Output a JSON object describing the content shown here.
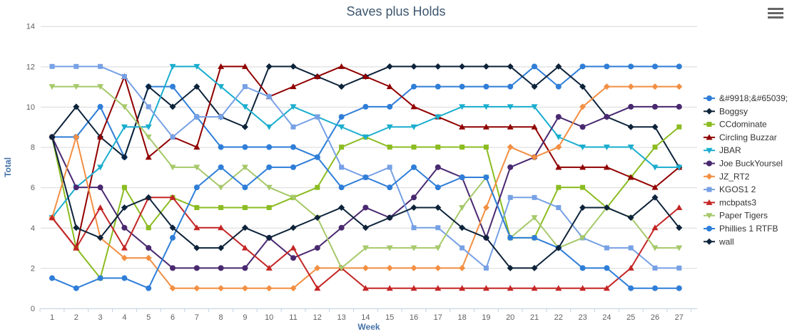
{
  "title": "Saves plus Holds",
  "menu": {
    "icon": "hamburger-menu-icon"
  },
  "colors": {
    "title_text": "#3E576F",
    "axis_title_text": "#4572A7",
    "tick_label_text": "#606060",
    "legend_text": "#333333",
    "gridline": "#D8D8D8",
    "axis_line": "#C0D0E0"
  },
  "chart_data": {
    "type": "line",
    "title": "Saves plus Holds",
    "xlabel": "Week",
    "ylabel": "Total",
    "x": [
      1,
      2,
      3,
      4,
      5,
      6,
      7,
      8,
      9,
      10,
      11,
      12,
      13,
      14,
      15,
      16,
      17,
      18,
      19,
      20,
      21,
      22,
      23,
      24,
      25,
      26,
      27
    ],
    "ylim": [
      0,
      14
    ],
    "yticks": [
      0,
      2,
      4,
      6,
      8,
      10,
      12,
      14
    ],
    "grid": true,
    "legend_position": "right",
    "series": [
      {
        "name": "&#9918;&#65039;",
        "color": "#2f7ed8",
        "marker": "circle",
        "values": [
          8.5,
          8.5,
          10,
          7.5,
          11,
          11,
          9.5,
          8,
          8,
          8,
          8,
          7.5,
          9.5,
          10,
          10,
          11,
          11,
          11,
          11,
          11,
          12,
          11,
          12,
          12,
          12,
          12,
          12
        ]
      },
      {
        "name": "Boggsy",
        "color": "#0d233a",
        "marker": "diamond",
        "values": [
          8.5,
          10,
          8.5,
          7.5,
          11,
          10,
          11,
          9.5,
          9,
          12,
          12,
          11.5,
          11,
          11.5,
          12,
          12,
          12,
          12,
          12,
          12,
          11,
          12,
          11,
          9.5,
          9,
          9,
          7
        ]
      },
      {
        "name": "CCdominate",
        "color": "#8bbc21",
        "marker": "square",
        "values": [
          8.5,
          3,
          1.5,
          6,
          4,
          5.5,
          5,
          5,
          5,
          5,
          5.5,
          6,
          8,
          8.5,
          8,
          8,
          8,
          8,
          8,
          3.5,
          3.5,
          6,
          6,
          5,
          6.5,
          8,
          9
        ]
      },
      {
        "name": "Circling Buzzar",
        "color": "#910000",
        "marker": "triangle",
        "values": [
          4.5,
          3,
          8.5,
          11.5,
          7.5,
          8.5,
          8,
          12,
          12,
          10.5,
          11,
          11.5,
          12,
          11.5,
          11,
          10,
          9.5,
          9,
          9,
          9,
          9,
          7,
          7,
          7,
          6.5,
          6,
          7
        ]
      },
      {
        "name": "JBAR",
        "color": "#1aadce",
        "marker": "triangle-down",
        "values": [
          4.5,
          6,
          7,
          9,
          9,
          12,
          12,
          11,
          10,
          9,
          10,
          9.5,
          9,
          8.5,
          9,
          9,
          9.5,
          10,
          10,
          10,
          10,
          8.5,
          8,
          8,
          8,
          7,
          7
        ]
      },
      {
        "name": "Joe BuckYoursel",
        "color": "#492970",
        "marker": "circle",
        "values": [
          8.5,
          6,
          6,
          4,
          3,
          2,
          2,
          2,
          2,
          3.5,
          2.5,
          3,
          4,
          5,
          4.5,
          5.5,
          7,
          6.5,
          3.5,
          7,
          7.5,
          9.5,
          9,
          9.5,
          10,
          10,
          10
        ]
      },
      {
        "name": "JZ_RT2",
        "color": "#f28f43",
        "marker": "diamond",
        "values": [
          4.5,
          8.5,
          3.5,
          2.5,
          2.5,
          1,
          1,
          1,
          1,
          1,
          1,
          2,
          2,
          2,
          2,
          2,
          2,
          2,
          5,
          8,
          7.5,
          8,
          10,
          11,
          11,
          11,
          11
        ]
      },
      {
        "name": "KGOS1 2",
        "color": "#77a1e5",
        "marker": "square",
        "values": [
          12,
          12,
          12,
          11.5,
          10,
          8.5,
          9.5,
          9.5,
          11,
          10.5,
          9,
          9.5,
          7,
          6.5,
          7,
          4,
          4,
          3,
          2,
          5.5,
          5.5,
          5,
          3.5,
          3,
          3,
          2,
          2
        ]
      },
      {
        "name": "mcbpats3",
        "color": "#c42525",
        "marker": "triangle",
        "values": [
          4.5,
          3,
          5,
          3,
          5.5,
          5.5,
          4,
          4,
          3,
          2,
          3,
          1,
          2,
          1,
          1,
          1,
          1,
          1,
          1,
          1,
          1,
          1,
          1,
          1,
          2,
          4,
          5
        ]
      },
      {
        "name": "Paper Tigers",
        "color": "#a6c96a",
        "marker": "triangle-down",
        "values": [
          11,
          11,
          11,
          10,
          8.5,
          7,
          7,
          6,
          7,
          6,
          5.5,
          4.5,
          2,
          3,
          3,
          3,
          3,
          5,
          6.5,
          3.5,
          4.5,
          3,
          3.5,
          5,
          4.5,
          3,
          3
        ]
      },
      {
        "name": "Phillies 1 RTFB",
        "color": "#2f7ed8",
        "marker": "circle",
        "values": [
          1.5,
          1,
          1.5,
          1.5,
          1,
          3.5,
          6,
          7,
          6,
          7,
          7,
          7.5,
          6,
          6.5,
          6,
          7,
          6,
          6.5,
          6.5,
          3.5,
          3.5,
          3,
          2,
          2,
          1,
          1,
          1
        ]
      },
      {
        "name": "wall",
        "color": "#0d233a",
        "marker": "diamond",
        "values": [
          8.5,
          4,
          3.5,
          5,
          5.5,
          4,
          3,
          3,
          4,
          3.5,
          4,
          4.5,
          5,
          4,
          4.5,
          5,
          5,
          4,
          3.5,
          2,
          2,
          3,
          5,
          5,
          4.5,
          5.5,
          4
        ]
      }
    ]
  }
}
